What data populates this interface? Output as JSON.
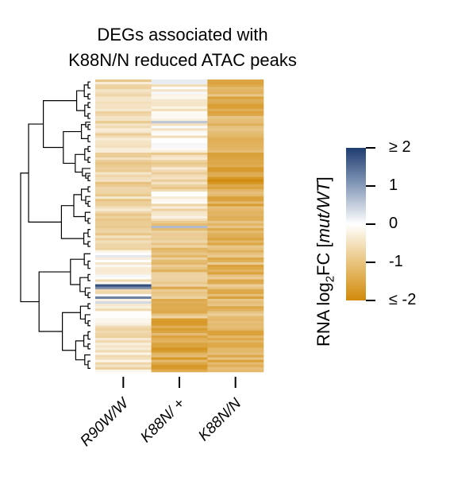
{
  "chart_data": {
    "type": "heatmap",
    "title_line1": "DEGs associated with",
    "title_line2": "K88N/N reduced ATAC peaks",
    "columns": [
      "R90W/W",
      "K88N/ +",
      "K88N/N"
    ],
    "colorbar": {
      "label_prefix": "RNA log",
      "label_sub": "2",
      "label_mid": "FC [",
      "label_italic": "mut/WT",
      "label_suffix": "]",
      "ticks": [
        2,
        1,
        0,
        -1,
        -2
      ],
      "tick_labels": [
        "≥ 2",
        "1",
        "0",
        "-1",
        "≤ -2"
      ],
      "vmin": -2,
      "vmax": 2,
      "colors": {
        "low": "#d18a0a",
        "mid": "#ffffff",
        "high": "#1e3c70"
      }
    },
    "dendrogram": "left",
    "n_rows": 120,
    "row_pattern": {
      "R90W/W": [
        {
          "rows": [
            0,
            29
          ],
          "level": -0.6,
          "spread": 0.35
        },
        {
          "rows": [
            30,
            44
          ],
          "level": -0.75,
          "spread": 0.35
        },
        {
          "rows": [
            45,
            56
          ],
          "level": -0.7,
          "spread": 0.4
        },
        {
          "rows": [
            57,
            69
          ],
          "level": -0.8,
          "spread": 0.35
        },
        {
          "rows": [
            70,
            80
          ],
          "level": -0.2,
          "spread": 0.5
        },
        {
          "rows": [
            81,
            97
          ],
          "level": -0.35,
          "spread": 0.4
        },
        {
          "rows": [
            98,
            119
          ],
          "level": -0.45,
          "spread": 0.35
        }
      ],
      "K88N/ +": [
        {
          "rows": [
            0,
            29
          ],
          "level": -0.25,
          "spread": 0.35
        },
        {
          "rows": [
            30,
            44
          ],
          "level": -0.7,
          "spread": 0.45
        },
        {
          "rows": [
            45,
            56
          ],
          "level": -0.45,
          "spread": 0.45
        },
        {
          "rows": [
            57,
            69
          ],
          "level": -0.9,
          "spread": 0.4
        },
        {
          "rows": [
            70,
            80
          ],
          "level": -1.0,
          "spread": 0.4
        },
        {
          "rows": [
            81,
            97
          ],
          "level": -1.1,
          "spread": 0.4
        },
        {
          "rows": [
            98,
            119
          ],
          "level": -1.5,
          "spread": 0.35
        }
      ],
      "K88N/N": [
        {
          "rows": [
            0,
            29
          ],
          "level": -1.3,
          "spread": 0.35
        },
        {
          "rows": [
            30,
            44
          ],
          "level": -1.7,
          "spread": 0.3
        },
        {
          "rows": [
            45,
            56
          ],
          "level": -1.4,
          "spread": 0.35
        },
        {
          "rows": [
            57,
            69
          ],
          "level": -1.3,
          "spread": 0.4
        },
        {
          "rows": [
            70,
            80
          ],
          "level": -1.2,
          "spread": 0.4
        },
        {
          "rows": [
            81,
            97
          ],
          "level": -1.2,
          "spread": 0.4
        },
        {
          "rows": [
            98,
            119
          ],
          "level": -1.3,
          "spread": 0.35
        }
      ]
    },
    "row_highlights": [
      {
        "column": "K88N/ +",
        "row": 17,
        "value": 0.6
      },
      {
        "column": "K88N/ +",
        "row": 60,
        "value": 0.7
      },
      {
        "column": "R90W/W",
        "row": 84,
        "value": 1.8
      },
      {
        "column": "R90W/W",
        "row": 85,
        "value": 1.2
      },
      {
        "column": "R90W/W",
        "row": 89,
        "value": 1.3
      },
      {
        "column": "R90W/W",
        "row": 91,
        "value": 0.4
      },
      {
        "column": "K88N/ +",
        "row": 0,
        "value": 0.2
      },
      {
        "column": "K88N/ +",
        "row": 1,
        "value": 0.2
      }
    ]
  }
}
